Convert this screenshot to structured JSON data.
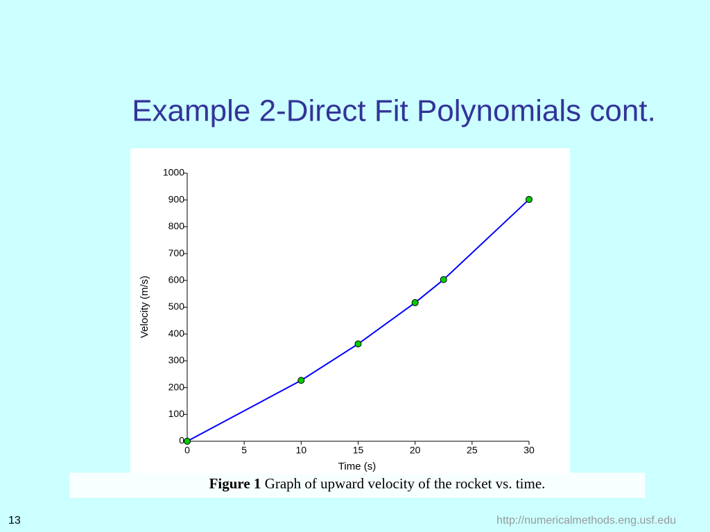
{
  "slide_title": "Example 2-Direct Fit Polynomials cont.",
  "chart_data": {
    "type": "line",
    "x_label": "Time (s)",
    "y_label": "Velocity (m/s)",
    "x": [
      0,
      10,
      15,
      20,
      22.5,
      30
    ],
    "values": [
      0,
      227,
      363,
      517,
      603,
      902
    ],
    "color": "#0000ff",
    "marker_color": "#00cc00",
    "markers": true,
    "xlim": [
      0,
      30
    ],
    "xticks": [
      0,
      5,
      10,
      15,
      20,
      25,
      30
    ],
    "ylim": [
      0,
      1000
    ],
    "yticks": [
      0,
      100,
      200,
      300,
      400,
      500,
      600,
      700,
      800,
      900,
      1000
    ],
    "grid": false
  },
  "caption": {
    "label": "Figure 1",
    "text": "Graph of upward velocity of the rocket vs. time."
  },
  "page_number": "13",
  "footer_url": "http://numericalmethods.eng.usf.edu"
}
